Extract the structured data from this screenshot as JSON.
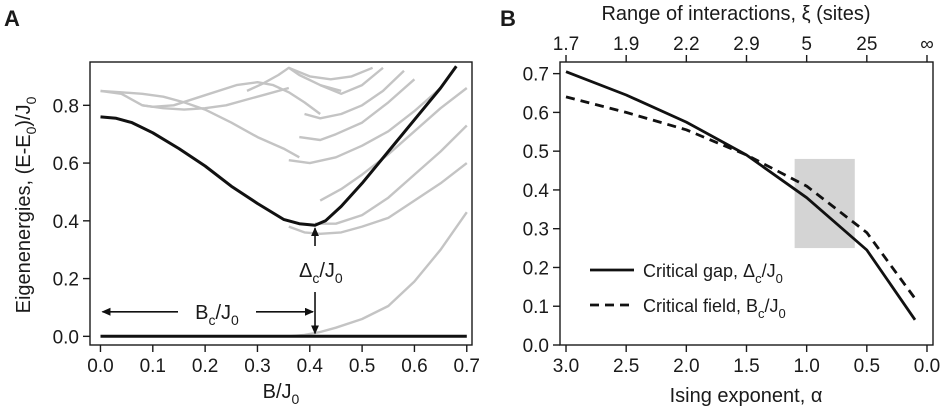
{
  "chart_data": [
    {
      "panel": "A",
      "type": "line",
      "xlabel": "B/J",
      "xlabel_sub": "0",
      "ylabel": "Eigenenergies, (E-E",
      "ylabel_sub": "0",
      "ylabel_tail": ")/J",
      "ylabel_sub2": "0",
      "xlim": [
        -0.02,
        0.71
      ],
      "ylim": [
        -0.03,
        0.95
      ],
      "xticks": [
        "0.0",
        "0.1",
        "0.2",
        "0.3",
        "0.4",
        "0.5",
        "0.6",
        "0.7"
      ],
      "xtick_values": [
        0,
        0.1,
        0.2,
        0.3,
        0.4,
        0.5,
        0.6,
        0.7
      ],
      "yticks": [
        "0.0",
        "0.2",
        "0.4",
        "0.6",
        "0.8"
      ],
      "ytick_values": [
        0,
        0.2,
        0.4,
        0.6,
        0.8
      ],
      "colors": {
        "highlight": "#111111",
        "levels": "#c4c4c4"
      },
      "series": [
        {
          "role": "highlight",
          "x": [
            0,
            0.7
          ],
          "y": [
            0,
            0
          ]
        },
        {
          "role": "highlight",
          "x": [
            0,
            0.03,
            0.06,
            0.1,
            0.15,
            0.2,
            0.25,
            0.3,
            0.35,
            0.38,
            0.41,
            0.43,
            0.46,
            0.5,
            0.55,
            0.6,
            0.65,
            0.68
          ],
          "y": [
            0.76,
            0.755,
            0.74,
            0.705,
            0.65,
            0.59,
            0.52,
            0.46,
            0.405,
            0.39,
            0.385,
            0.4,
            0.45,
            0.53,
            0.64,
            0.75,
            0.86,
            0.935
          ]
        },
        {
          "role": "level",
          "x": [
            0.36,
            0.39,
            0.42,
            0.45,
            0.5,
            0.55,
            0.6,
            0.65,
            0.7
          ],
          "y": [
            0.0,
            0.005,
            0.015,
            0.03,
            0.06,
            0.105,
            0.19,
            0.3,
            0.43
          ]
        },
        {
          "role": "level",
          "x": [
            0.36,
            0.39,
            0.42,
            0.46,
            0.5,
            0.55,
            0.6,
            0.65,
            0.7
          ],
          "y": [
            0.38,
            0.36,
            0.355,
            0.36,
            0.38,
            0.41,
            0.47,
            0.53,
            0.6
          ]
        },
        {
          "role": "level",
          "x": [
            0.41,
            0.45,
            0.5,
            0.55,
            0.6,
            0.65,
            0.7
          ],
          "y": [
            0.39,
            0.39,
            0.42,
            0.48,
            0.56,
            0.64,
            0.73
          ]
        },
        {
          "role": "level",
          "x": [
            0.42,
            0.46,
            0.5,
            0.55,
            0.6,
            0.65,
            0.7
          ],
          "y": [
            0.47,
            0.51,
            0.56,
            0.63,
            0.71,
            0.79,
            0.86
          ]
        },
        {
          "role": "level",
          "x": [
            0.36,
            0.4,
            0.45,
            0.5,
            0.55,
            0.6,
            0.65
          ],
          "y": [
            0.61,
            0.6,
            0.62,
            0.66,
            0.71,
            0.78,
            0.86
          ]
        },
        {
          "role": "level",
          "x": [
            0.38,
            0.42,
            0.45,
            0.5,
            0.55,
            0.6
          ],
          "y": [
            0.69,
            0.68,
            0.7,
            0.74,
            0.81,
            0.89
          ]
        },
        {
          "role": "level",
          "x": [
            0.39,
            0.42,
            0.46,
            0.5,
            0.54,
            0.58
          ],
          "y": [
            0.77,
            0.755,
            0.77,
            0.8,
            0.85,
            0.92
          ]
        },
        {
          "role": "level",
          "x": [
            0,
            0.04,
            0.08,
            0.1,
            0.14,
            0.2,
            0.26,
            0.3,
            0.33,
            0.36,
            0.39,
            0.42
          ],
          "y": [
            0.85,
            0.84,
            0.8,
            0.795,
            0.8,
            0.835,
            0.87,
            0.88,
            0.87,
            0.845,
            0.81,
            0.77
          ]
        },
        {
          "role": "level",
          "x": [
            0,
            0.04,
            0.08,
            0.12,
            0.16,
            0.2,
            0.25,
            0.3,
            0.35,
            0.38
          ],
          "y": [
            0.85,
            0.845,
            0.84,
            0.83,
            0.81,
            0.785,
            0.74,
            0.69,
            0.65,
            0.62
          ]
        },
        {
          "role": "level",
          "x": [
            0.08,
            0.12,
            0.16,
            0.2,
            0.24,
            0.28,
            0.32,
            0.36
          ],
          "y": [
            0.8,
            0.79,
            0.785,
            0.79,
            0.8,
            0.82,
            0.84,
            0.86
          ]
        },
        {
          "role": "level",
          "x": [
            0.28,
            0.31,
            0.34,
            0.36,
            0.38,
            0.42,
            0.46
          ],
          "y": [
            0.85,
            0.875,
            0.905,
            0.93,
            0.905,
            0.87,
            0.85
          ]
        },
        {
          "role": "level",
          "x": [
            0.36,
            0.4,
            0.44,
            0.48,
            0.52
          ],
          "y": [
            0.93,
            0.9,
            0.89,
            0.9,
            0.93
          ]
        },
        {
          "role": "level",
          "x": [
            0.42,
            0.46,
            0.5,
            0.54
          ],
          "y": [
            0.87,
            0.84,
            0.87,
            0.93
          ]
        }
      ],
      "annotations": {
        "bc_label": "B",
        "bc_sub": "c",
        "bc_tail": "/J",
        "bc_sub2": "0",
        "delta_label": "Δ",
        "delta_sub": "c",
        "delta_tail": "/J",
        "delta_sub2": "0",
        "bc_arrow": {
          "x_from": 0,
          "x_to": 0.41,
          "y": 0.085
        },
        "delta_arrow": {
          "x": 0.41,
          "y_from": 0.0,
          "y_to": 0.385
        }
      }
    },
    {
      "panel": "B",
      "type": "line",
      "xlabel": "Ising exponent, α",
      "x2label": "Range of interactions, ξ (sites)",
      "xlim": [
        3.05,
        -0.05
      ],
      "ylim": [
        0.0,
        0.73
      ],
      "xticks": [
        "3.0",
        "2.5",
        "2.0",
        "1.5",
        "1.0",
        "0.5",
        "0.0"
      ],
      "xtick_values": [
        3.0,
        2.5,
        2.0,
        1.5,
        1.0,
        0.5,
        0.0
      ],
      "x2ticks": [
        "1.7",
        "1.9",
        "2.2",
        "2.9",
        "5",
        "25",
        "∞"
      ],
      "x2tick_values": [
        3.0,
        2.5,
        2.0,
        1.5,
        1.0,
        0.5,
        0.0
      ],
      "yticks": [
        "0.0",
        "0.1",
        "0.2",
        "0.3",
        "0.4",
        "0.5",
        "0.6",
        "0.7"
      ],
      "ytick_values": [
        0,
        0.1,
        0.2,
        0.3,
        0.4,
        0.5,
        0.6,
        0.7
      ],
      "shaded_region": {
        "x": [
          1.1,
          0.6
        ],
        "y": [
          0.25,
          0.48
        ],
        "color": "#d4d4d4"
      },
      "series": [
        {
          "name": "Critical gap, Δ",
          "name_sub": "c",
          "name_tail": "/J",
          "name_sub2": "0",
          "style": "solid",
          "x": [
            3.0,
            2.5,
            2.0,
            1.5,
            1.0,
            0.5,
            0.1
          ],
          "y": [
            0.705,
            0.645,
            0.575,
            0.49,
            0.38,
            0.245,
            0.065
          ]
        },
        {
          "name": "Critical field, B",
          "name_sub": "c",
          "name_tail": "/J",
          "name_sub2": "0",
          "style": "dashed",
          "x": [
            3.0,
            2.5,
            2.0,
            1.5,
            1.0,
            0.5,
            0.1
          ],
          "y": [
            0.64,
            0.6,
            0.555,
            0.49,
            0.41,
            0.29,
            0.12
          ]
        }
      ],
      "legend": {
        "placement": "bottom-left"
      },
      "colors": {
        "lines": "#111111"
      }
    }
  ]
}
